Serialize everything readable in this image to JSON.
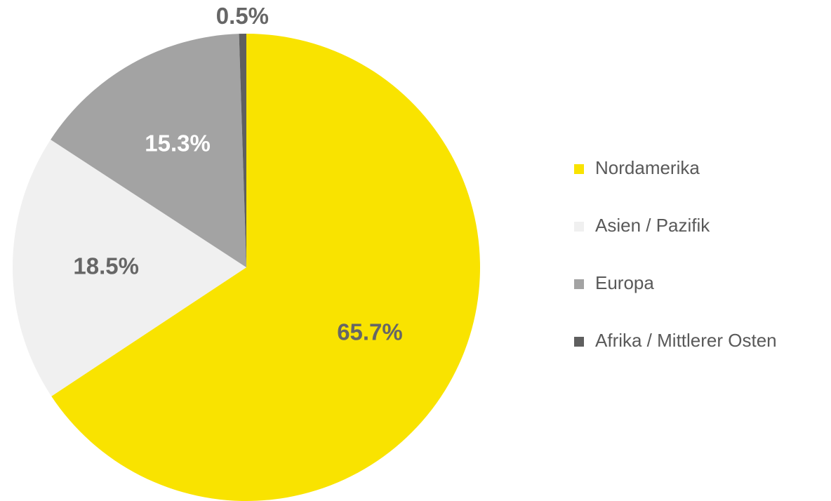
{
  "chart_data": {
    "type": "pie",
    "categories": [
      "Nordamerika",
      "Asien / Pazifik",
      "Europa",
      "Afrika / Mittlerer Osten"
    ],
    "values": [
      65.7,
      18.5,
      15.3,
      0.5
    ],
    "value_labels": [
      "65.7%",
      "18.5%",
      "15.3%",
      "0.5%"
    ],
    "colors": [
      "#f9e300",
      "#f0f0f0",
      "#a3a3a3",
      "#5f5f5f"
    ],
    "label_colors": [
      "#666666",
      "#666666",
      "#ffffff",
      "#666666"
    ],
    "legend": "right"
  }
}
